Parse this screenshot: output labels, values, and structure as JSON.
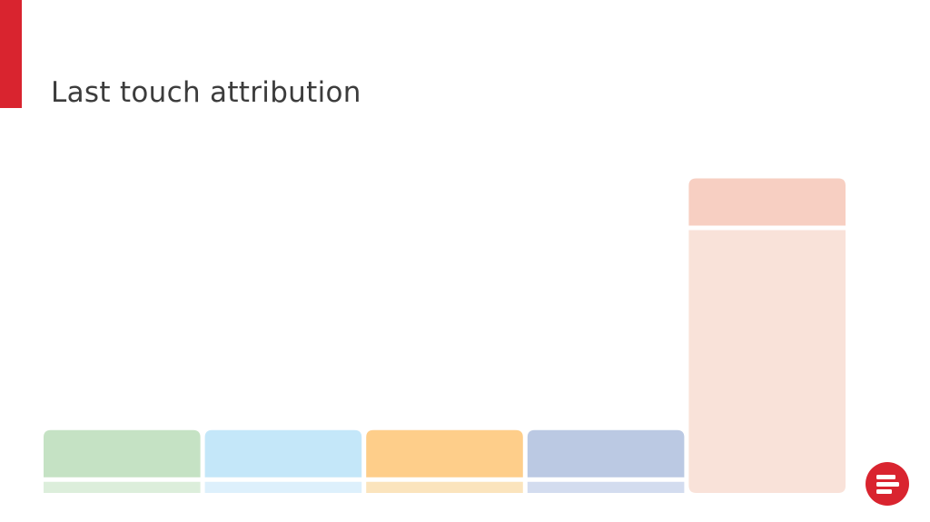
{
  "slide": {
    "title": "Last touch attribution",
    "accent_color": "#d9242f",
    "logo": {
      "icon": "brand-logo-icon",
      "color": "#d9242f"
    }
  },
  "chart_data": {
    "type": "bar",
    "title": "Last touch attribution",
    "categories": [
      "",
      "",
      "",
      "",
      ""
    ],
    "values": [
      15,
      15,
      15,
      15,
      75
    ],
    "colors": [
      {
        "head": "#c5e2c4",
        "body": "#dceedb"
      },
      {
        "head": "#c4e7f9",
        "body": "#ddf0fc"
      },
      {
        "head": "#fece8a",
        "body": "#fbe4bd"
      },
      {
        "head": "#bbc9e3",
        "body": "#d3dcef"
      },
      {
        "head": "#f7cfc2",
        "body": "#f9e2d9"
      }
    ],
    "ylim": [
      0,
      100
    ],
    "grid": false,
    "legend": "none"
  }
}
